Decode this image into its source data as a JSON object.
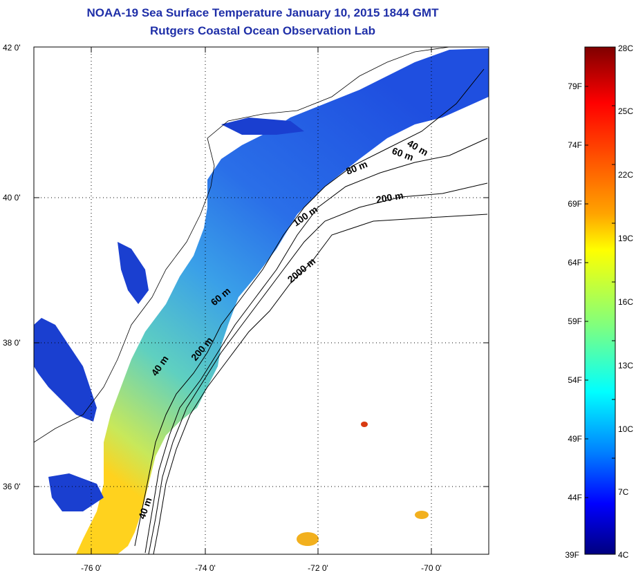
{
  "title": {
    "line1": "NOAA-19 Sea Surface Temperature January 10, 2015 1844 GMT",
    "line2": "Rutgers Coastal Ocean Observation Lab"
  },
  "map": {
    "lat_labels": [
      "42 0'",
      "40 0'",
      "38 0'",
      "36 0'"
    ],
    "lon_labels": [
      "-76 0'",
      "-74 0'",
      "-72 0'",
      "-70 0'"
    ],
    "lat_range": [
      35,
      42
    ],
    "lon_range": [
      -77,
      -69
    ],
    "isobath_labels": [
      "40 m",
      "60 m",
      "80 m",
      "200 m",
      "100 m",
      "2000 m",
      "60 m",
      "200 m",
      "40 m",
      "40 m"
    ]
  },
  "colorbar": {
    "celsius_labels": [
      "28C",
      "25C",
      "22C",
      "19C",
      "16C",
      "13C",
      "10C",
      "7C",
      "4C"
    ],
    "fahrenheit_labels": [
      "79F",
      "74F",
      "69F",
      "64F",
      "59F",
      "54F",
      "49F",
      "44F",
      "39F"
    ],
    "colors": [
      "#7f0000",
      "#ff0000",
      "#ffa500",
      "#ffff00",
      "#7fff7f",
      "#00ffff",
      "#007fff",
      "#0000ff",
      "#00007f"
    ]
  }
}
